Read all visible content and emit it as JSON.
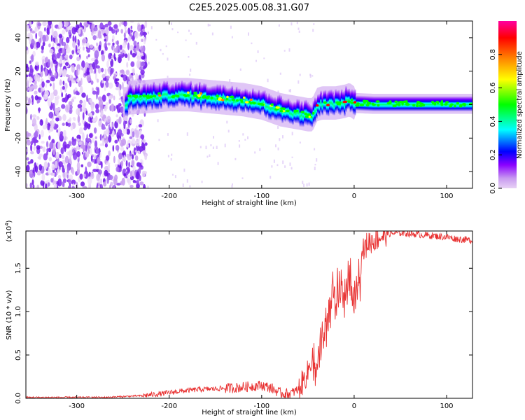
{
  "figure": {
    "title": "C2E5.2025.005.08.31.G07"
  },
  "chart_data": [
    {
      "type": "heatmap",
      "title": "C2E5.2025.005.08.31.G07",
      "xlabel": "Height of straight line (km)",
      "ylabel": "Frequency (Hz)",
      "xlim": [
        -355,
        128
      ],
      "ylim": [
        -50,
        50
      ],
      "x_ticks": [
        -300,
        -200,
        -100,
        0,
        100
      ],
      "y_ticks": [
        -40,
        -20,
        0,
        20,
        40
      ],
      "colorbar": {
        "label": "Normalized spectral amplitude",
        "range": [
          0,
          1
        ],
        "ticks": [
          "0.0",
          "0.2",
          "0.4",
          "0.6",
          "0.8"
        ],
        "tick_values": [
          0.0,
          0.2,
          0.4,
          0.6,
          0.8
        ],
        "stops": [
          "#e8d2f5",
          "#8a00ff",
          "#0000ff",
          "#00ffff",
          "#00ff00",
          "#ffff00",
          "#ff8000",
          "#ff0000",
          "#ff00a0"
        ]
      },
      "ridge": {
        "description_free": true,
        "x": [
          -245,
          -220,
          -200,
          -180,
          -160,
          -140,
          -120,
          -100,
          -90,
          -80,
          -70,
          -60,
          -50,
          -45,
          -40,
          -35,
          -30,
          -20,
          -10,
          -5,
          0,
          20,
          60,
          100,
          128
        ],
        "y": [
          4,
          5,
          6,
          6,
          5,
          4,
          3,
          1,
          -1,
          -3,
          -4,
          -5,
          -6,
          -6,
          0,
          1,
          1,
          1,
          2,
          3,
          1,
          0.5,
          0.5,
          0.5,
          0.5
        ]
      }
    },
    {
      "type": "line",
      "xlabel": "Height of straight line (km)",
      "ylabel": "SNR (10 * v/v)",
      "scale_note": "(x10",
      "scale_exp": "4",
      "y_ticks": [
        0.0,
        0.5,
        1.0,
        1.5
      ],
      "y_tick_labels": [
        "0.0",
        "0.5",
        "1.0",
        "1.5"
      ],
      "x_ticks": [
        -300,
        -200,
        -100,
        0,
        100
      ],
      "xlim": [
        -355,
        128
      ],
      "ylim": [
        0,
        1.93
      ],
      "color": "#e83030",
      "series": [
        {
          "name": "SNR",
          "x": [
            -355,
            -330,
            -300,
            -270,
            -250,
            -230,
            -210,
            -190,
            -170,
            -150,
            -130,
            -110,
            -100,
            -90,
            -80,
            -70,
            -60,
            -50,
            -45,
            -40,
            -35,
            -30,
            -25,
            -20,
            -15,
            -10,
            -5,
            0,
            5,
            10,
            15,
            20,
            25,
            30,
            35,
            40,
            50,
            60,
            70,
            80,
            90,
            100,
            110,
            120,
            128
          ],
          "y": [
            0.01,
            0.01,
            0.01,
            0.01,
            0.02,
            0.03,
            0.05,
            0.08,
            0.1,
            0.11,
            0.12,
            0.14,
            0.15,
            0.12,
            0.06,
            0.05,
            0.1,
            0.3,
            0.5,
            0.7,
            0.9,
            1.1,
            1.3,
            1.45,
            1.5,
            1.4,
            1.55,
            1.45,
            1.6,
            1.7,
            1.8,
            1.82,
            1.85,
            1.87,
            1.9,
            1.9,
            1.91,
            1.9,
            1.89,
            1.88,
            1.87,
            1.86,
            1.84,
            1.83,
            1.82
          ]
        }
      ]
    }
  ]
}
